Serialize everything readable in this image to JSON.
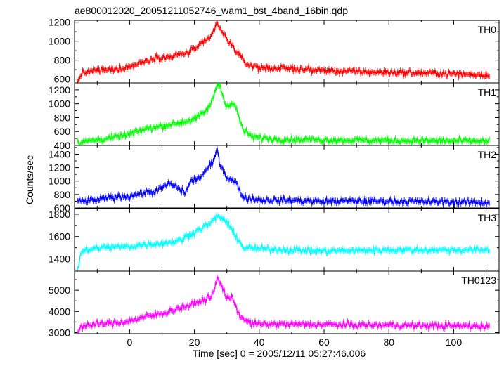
{
  "title": "ae800012020_20051211052746_wam1_bst_4band_16bin.qdp",
  "xlabel": "Time [sec] 0 = 2005/12/11 05:27:46.006",
  "ylabel": "Counts/sec",
  "chart_data": {
    "type": "line",
    "title": "ae800012020_20051211052746_wam1_bst_4band_16bin.qdp",
    "xlabel": "Time [sec] 0 = 2005/12/11 05:27:46.006",
    "ylabel": "Counts/sec",
    "xlim": [
      -17,
      114
    ],
    "x_ticks": [
      0,
      20,
      40,
      60,
      80,
      100
    ],
    "grid": false,
    "panels": [
      {
        "name": "TH0",
        "color": "#ff0000",
        "ylim": [
          560,
          1220
        ],
        "y_ticks": [
          600,
          800,
          1000,
          1200
        ],
        "profile": [
          [
            -16,
            560
          ],
          [
            -15,
            660
          ],
          [
            -10,
            690
          ],
          [
            -5,
            700
          ],
          [
            0,
            730
          ],
          [
            5,
            790
          ],
          [
            8,
            830
          ],
          [
            12,
            830
          ],
          [
            18,
            880
          ],
          [
            22,
            960
          ],
          [
            25,
            1040
          ],
          [
            26,
            1120
          ],
          [
            27,
            1200
          ],
          [
            28,
            1120
          ],
          [
            30,
            1020
          ],
          [
            32,
            940
          ],
          [
            34,
            840
          ],
          [
            36,
            760
          ],
          [
            40,
            720
          ],
          [
            50,
            710
          ],
          [
            60,
            690
          ],
          [
            70,
            680
          ],
          [
            80,
            670
          ],
          [
            90,
            665
          ],
          [
            100,
            655
          ],
          [
            111,
            645
          ]
        ]
      },
      {
        "name": "TH1",
        "color": "#00ff00",
        "ylim": [
          400,
          1300
        ],
        "y_ticks": [
          400,
          600,
          800,
          1000,
          1200
        ],
        "profile": [
          [
            -16,
            440
          ],
          [
            -10,
            480
          ],
          [
            -5,
            510
          ],
          [
            0,
            560
          ],
          [
            5,
            640
          ],
          [
            10,
            680
          ],
          [
            15,
            720
          ],
          [
            20,
            780
          ],
          [
            23,
            870
          ],
          [
            25,
            980
          ],
          [
            27,
            1280
          ],
          [
            28,
            1250
          ],
          [
            29,
            1060
          ],
          [
            30,
            980
          ],
          [
            32,
            1000
          ],
          [
            33,
            920
          ],
          [
            35,
            620
          ],
          [
            38,
            520
          ],
          [
            45,
            490
          ],
          [
            60,
            480
          ],
          [
            80,
            470
          ],
          [
            100,
            465
          ],
          [
            111,
            460
          ]
        ]
      },
      {
        "name": "TH2",
        "color": "#0000ff",
        "ylim": [
          600,
          1530
        ],
        "y_ticks": [
          600,
          800,
          1000,
          1200,
          1400
        ],
        "profile": [
          [
            -16,
            700
          ],
          [
            -10,
            720
          ],
          [
            -5,
            760
          ],
          [
            0,
            780
          ],
          [
            5,
            830
          ],
          [
            8,
            840
          ],
          [
            10,
            900
          ],
          [
            12,
            960
          ],
          [
            15,
            900
          ],
          [
            17,
            820
          ],
          [
            19,
            1000
          ],
          [
            22,
            1060
          ],
          [
            24,
            1180
          ],
          [
            26,
            1300
          ],
          [
            27,
            1480
          ],
          [
            28,
            1240
          ],
          [
            30,
            1060
          ],
          [
            32,
            1000
          ],
          [
            33,
            960
          ],
          [
            35,
            760
          ],
          [
            40,
            720
          ],
          [
            60,
            700
          ],
          [
            80,
            700
          ],
          [
            100,
            690
          ],
          [
            111,
            680
          ]
        ]
      },
      {
        "name": "TH3",
        "color": "#00ffff",
        "ylim": [
          1290,
          1850
        ],
        "y_ticks": [
          1400,
          1600,
          1800
        ],
        "profile": [
          [
            -16,
            1310
          ],
          [
            -15,
            1460
          ],
          [
            -10,
            1500
          ],
          [
            0,
            1510
          ],
          [
            5,
            1530
          ],
          [
            10,
            1540
          ],
          [
            15,
            1560
          ],
          [
            20,
            1640
          ],
          [
            25,
            1720
          ],
          [
            27,
            1780
          ],
          [
            29,
            1760
          ],
          [
            31,
            1680
          ],
          [
            33,
            1600
          ],
          [
            35,
            1500
          ],
          [
            40,
            1490
          ],
          [
            60,
            1470
          ],
          [
            80,
            1480
          ],
          [
            100,
            1480
          ],
          [
            111,
            1480
          ]
        ]
      },
      {
        "name": "TH0123",
        "color": "#ff00ff",
        "ylim": [
          2950,
          5900
        ],
        "y_ticks": [
          3000,
          4000,
          5000
        ],
        "profile": [
          [
            -16,
            3020
          ],
          [
            -15,
            3300
          ],
          [
            -10,
            3400
          ],
          [
            -5,
            3450
          ],
          [
            0,
            3550
          ],
          [
            5,
            3750
          ],
          [
            10,
            3900
          ],
          [
            15,
            4150
          ],
          [
            20,
            4350
          ],
          [
            23,
            4550
          ],
          [
            25,
            4700
          ],
          [
            26,
            4900
          ],
          [
            27,
            5600
          ],
          [
            28,
            5300
          ],
          [
            30,
            4700
          ],
          [
            32,
            4550
          ],
          [
            34,
            3800
          ],
          [
            37,
            3450
          ],
          [
            40,
            3400
          ],
          [
            60,
            3380
          ],
          [
            80,
            3350
          ],
          [
            100,
            3320
          ],
          [
            111,
            3310
          ]
        ]
      }
    ]
  }
}
